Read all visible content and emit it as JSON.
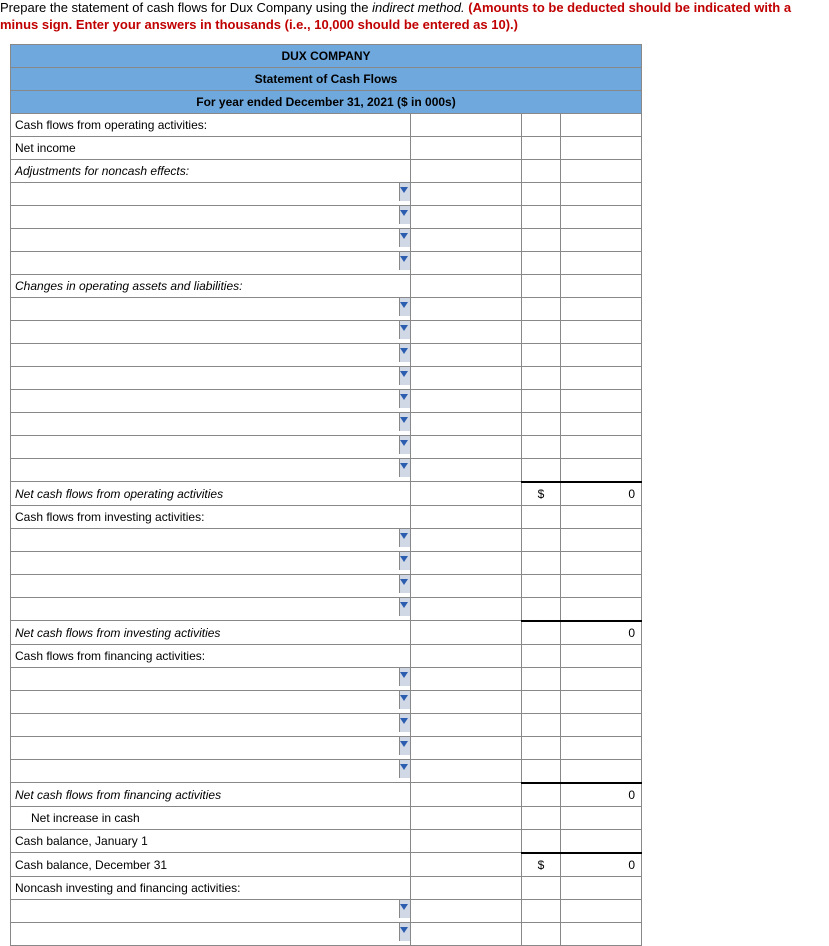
{
  "instructions": {
    "part1": "Prepare the statement of cash flows for Dux Company using the ",
    "part2": "indirect method. ",
    "part3": "(Amounts to be deducted should be indicated with a minus sign. Enter your answers in thousands (i.e., 10,000 should be entered as 10).)"
  },
  "header": {
    "company": "DUX COMPANY",
    "title": "Statement of Cash Flows",
    "period": "For year ended December 31, 2021 ($ in 000s)"
  },
  "labels": {
    "cfoa": "Cash flows from operating activities:",
    "net_income": "Net income",
    "adj": "Adjustments for noncash effects:",
    "changes": "Changes in operating assets and liabilities:",
    "ncf_oper": "Net cash flows from operating activities",
    "cfia": "Cash flows from investing activities:",
    "ncf_inv": "Net cash flows from investing activities",
    "cffa": "Cash flows from financing activities:",
    "ncf_fin": "Net cash flows from financing activities",
    "net_inc": "Net increase in cash",
    "bal_jan": "Cash balance, January 1",
    "bal_dec": "Cash balance, December 31",
    "noncash": "Noncash investing and financing activities:"
  },
  "values": {
    "dollar": "$",
    "zero": "0"
  },
  "style": {
    "header_bg": "#6fa8dc",
    "red": "#c00000",
    "dropdown_arrow": "#2a5db0",
    "col_widths": {
      "desc": 375,
      "amt1": 100,
      "sym": 30,
      "amt2": 70
    }
  }
}
